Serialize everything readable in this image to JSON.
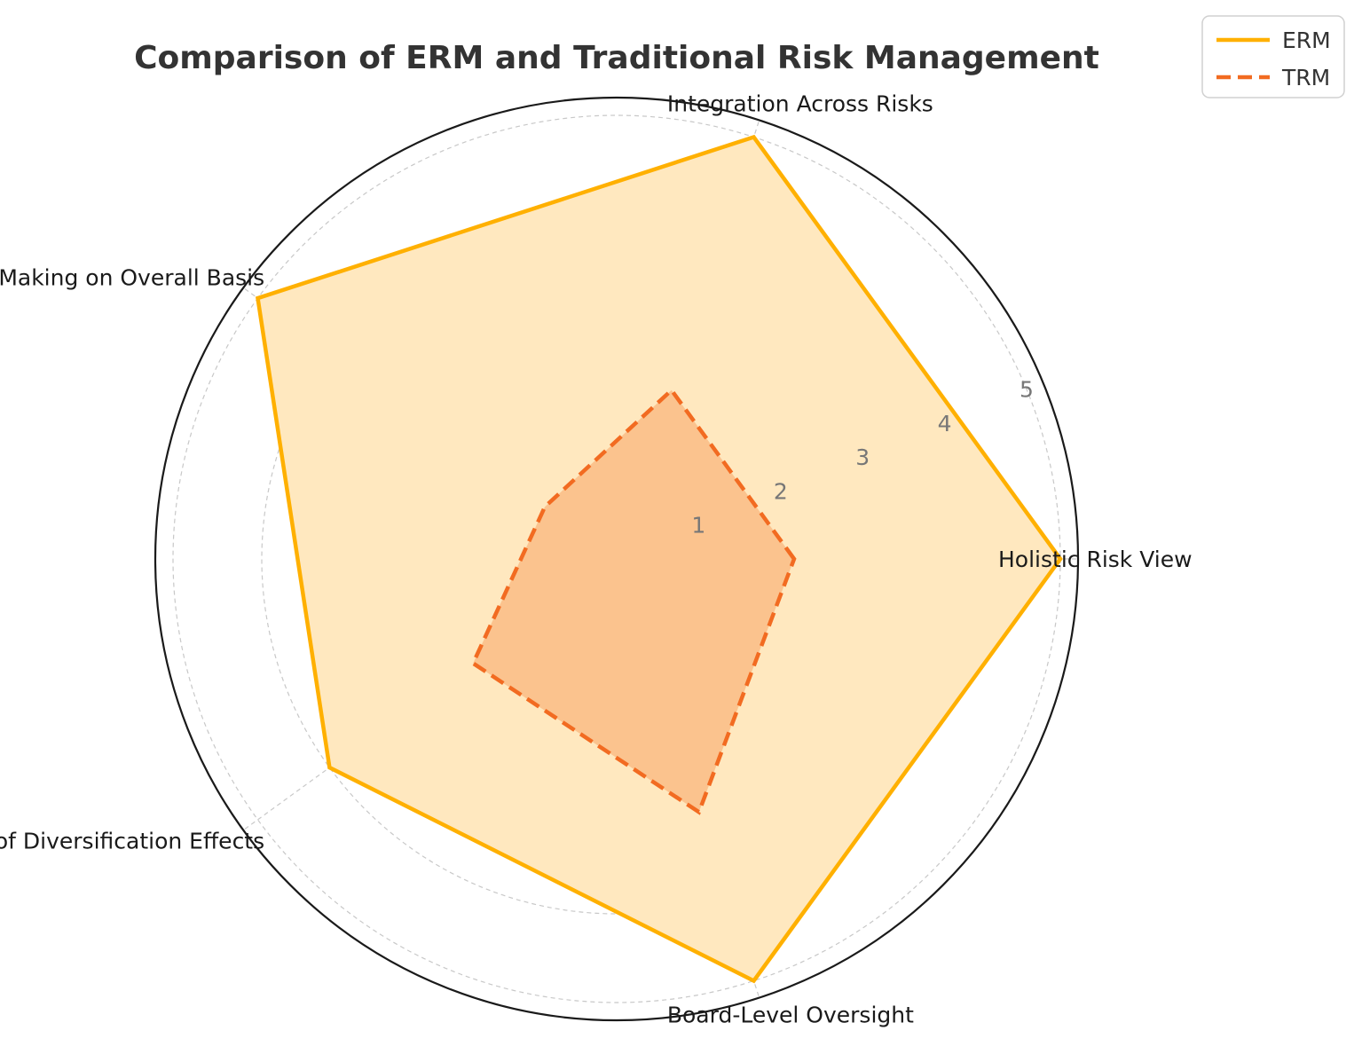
{
  "chart_data": {
    "type": "radar",
    "title": "Comparison of ERM and Traditional Risk Management",
    "categories": [
      "Holistic Risk View",
      "Integration Across Risks",
      "Decision Making on Overall Basis",
      "Use of Diversification Effects",
      "Board-Level Oversight"
    ],
    "series": [
      {
        "name": "ERM",
        "values": [
          5,
          5,
          5,
          4,
          5
        ],
        "color": "#FFB000",
        "fill": "#FFE8BF",
        "line_style": "solid"
      },
      {
        "name": "TRM",
        "values": [
          2,
          2,
          1,
          2,
          3
        ],
        "color": "#F26B21",
        "fill": "#FBC38E",
        "line_style": "dashed"
      }
    ],
    "radial_ticks": [
      "1",
      "2",
      "3",
      "4",
      "5"
    ],
    "rlim": [
      0,
      5.2
    ],
    "grid": true,
    "legend_position": "top-right"
  }
}
